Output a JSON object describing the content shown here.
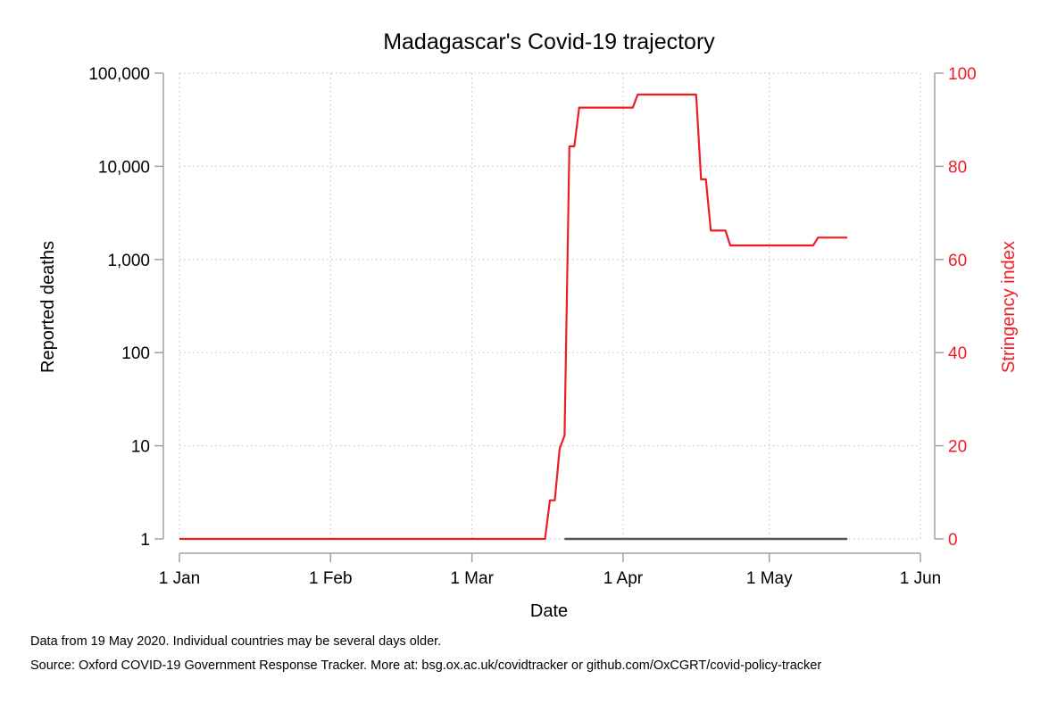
{
  "chart_data": {
    "type": "line",
    "title": "Madagascar's Covid-19 trajectory",
    "xlabel": "Date",
    "ylabel_left": "Reported deaths",
    "ylabel_right": "Stringency index",
    "x_ticks": [
      "1 Jan",
      "1 Feb",
      "1 Mar",
      "1 Apr",
      "1 May",
      "1 Jun"
    ],
    "xlim": [
      "2020-01-01",
      "2020-06-01"
    ],
    "y_left": {
      "scale": "log",
      "ylim": [
        1,
        100000
      ],
      "ticks": [
        1,
        10,
        100,
        1000,
        10000,
        100000
      ],
      "tick_labels": [
        "1",
        "10",
        "100",
        "1,000",
        "10,000",
        "100,000"
      ]
    },
    "y_right": {
      "scale": "linear",
      "ylim": [
        0,
        100
      ],
      "ticks": [
        0,
        20,
        40,
        60,
        80,
        100
      ],
      "tick_labels": [
        "0",
        "20",
        "40",
        "60",
        "80",
        "100"
      ]
    },
    "grid": true,
    "series": [
      {
        "axis": "left",
        "color": "#555555",
        "points": [
          [
            "2020-03-20",
            1
          ],
          [
            "2020-05-17",
            1
          ]
        ]
      },
      {
        "axis": "right",
        "color": "#ee1c25",
        "step": true,
        "points": [
          [
            "2020-01-01",
            0
          ],
          [
            "2020-03-16",
            0
          ],
          [
            "2020-03-17",
            8.3
          ],
          [
            "2020-03-18",
            8.3
          ],
          [
            "2020-03-19",
            19.4
          ],
          [
            "2020-03-20",
            22.2
          ],
          [
            "2020-03-21",
            84.3
          ],
          [
            "2020-03-22",
            84.3
          ],
          [
            "2020-03-23",
            92.6
          ],
          [
            "2020-04-03",
            92.6
          ],
          [
            "2020-04-04",
            95.4
          ],
          [
            "2020-04-16",
            95.4
          ],
          [
            "2020-04-17",
            77.2
          ],
          [
            "2020-04-18",
            77.2
          ],
          [
            "2020-04-19",
            66.2
          ],
          [
            "2020-04-22",
            66.2
          ],
          [
            "2020-04-23",
            63.0
          ],
          [
            "2020-05-10",
            63.0
          ],
          [
            "2020-05-11",
            64.7
          ],
          [
            "2020-05-17",
            64.7
          ]
        ]
      }
    ]
  },
  "footer": {
    "note": "Data from 19 May 2020. Individual countries may be several days older.",
    "source": "Source: Oxford COVID-19 Government Response Tracker. More at: bsg.ox.ac.uk/covidtracker or github.com/OxCGRT/covid-policy-tracker"
  },
  "colors": {
    "stringency": "#ee1c25",
    "deaths": "#555555",
    "axis": "#a0a0a0",
    "grid": "#c8c8c8"
  }
}
